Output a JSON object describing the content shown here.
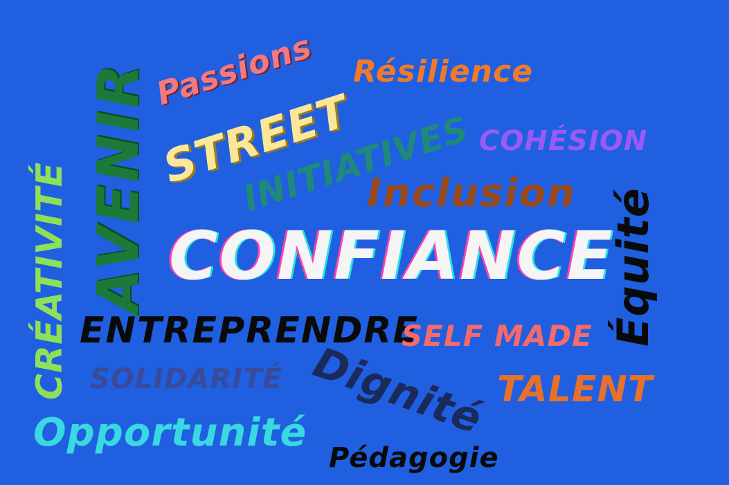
{
  "background_color": "#1f5fe0",
  "words": {
    "confiance": {
      "text": "CONFIANCE",
      "color": "#f5f5f5"
    },
    "avenir": {
      "text": "AVENIR",
      "color": "#1b7a3a"
    },
    "creativite": {
      "text": "CRÉATIVITÉ",
      "color": "#8ee05a"
    },
    "passions": {
      "text": "Passions",
      "color": "#f07a82"
    },
    "street": {
      "text": "STREET",
      "color": "#fbe79a"
    },
    "initiatives": {
      "text": "INITIATIVES",
      "color": "#1f8a7a"
    },
    "resilience": {
      "text": "Résilience",
      "color": "#f07a2a"
    },
    "cohesion": {
      "text": "COHÉSION",
      "color": "#9a5af5"
    },
    "inclusion": {
      "text": "Inclusion",
      "color": "#9a4a1a"
    },
    "equite": {
      "text": "Équité",
      "color": "#0a0a0a"
    },
    "entreprendre": {
      "text": "ENTREPRENDRE",
      "color": "#0a0a0a"
    },
    "selfmade": {
      "text": "SELF MADE",
      "color": "#f56a6a"
    },
    "solidarite": {
      "text": "SOLIDARITÉ",
      "color": "#3a4a9a"
    },
    "dignite": {
      "text": "Dignité",
      "color": "#1a2a5a"
    },
    "talent": {
      "text": "TALENT",
      "color": "#e8702a"
    },
    "opportunite": {
      "text": "Opportunité",
      "color": "#3ad8e0"
    },
    "pedagogie": {
      "text": "Pédagogie",
      "color": "#0a0a0a"
    }
  }
}
